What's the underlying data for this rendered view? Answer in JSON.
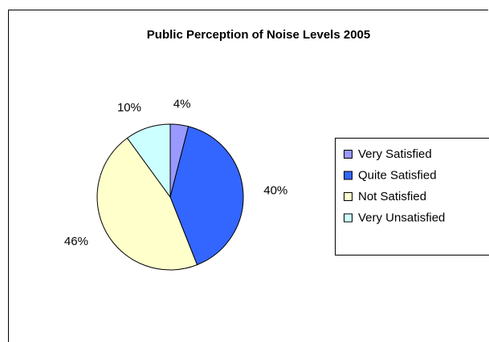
{
  "chart_data": {
    "type": "pie",
    "title": "Public Perception of Noise Levels 2005",
    "categories": [
      "Very Satisfied",
      "Quite Satisfied",
      "Not Satisfied",
      "Very Unsatisfied"
    ],
    "values": [
      4,
      40,
      46,
      10
    ],
    "value_labels": [
      "4%",
      "40%",
      "46%",
      "10%"
    ],
    "colors": [
      "#9999ff",
      "#3366ff",
      "#ffffcc",
      "#ccffff"
    ],
    "legend": "right"
  }
}
